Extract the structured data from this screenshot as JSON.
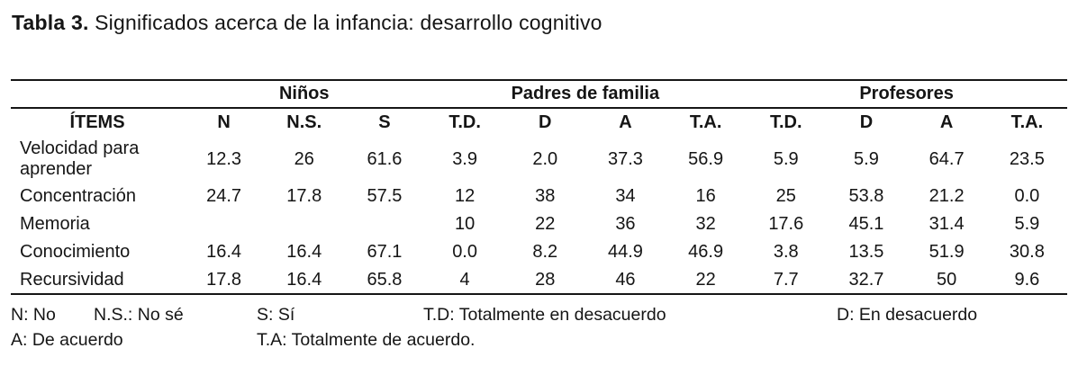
{
  "title": {
    "label": "Tabla 3.",
    "text": " Significados acerca de la infancia: desarrollo cognitivo"
  },
  "table": {
    "groups": [
      "Niños",
      "Padres de familia",
      "Profesores"
    ],
    "columns": [
      "ÍTEMS",
      "N",
      "N.S.",
      "S",
      "T.D.",
      "D",
      "A",
      "T.A.",
      "T.D.",
      "D",
      "A",
      "T.A."
    ],
    "rows": [
      {
        "label": "Velocidad para aprender",
        "values": [
          "12.3",
          "26",
          "61.6",
          "3.9",
          "2.0",
          "37.3",
          "56.9",
          "5.9",
          "5.9",
          "64.7",
          "23.5"
        ]
      },
      {
        "label": "Concentración",
        "values": [
          "24.7",
          "17.8",
          "57.5",
          "12",
          "38",
          "34",
          "16",
          "25",
          "53.8",
          "21.2",
          "0.0"
        ]
      },
      {
        "label": "Memoria",
        "values": [
          "",
          "",
          "",
          "10",
          "22",
          "36",
          "32",
          "17.6",
          "45.1",
          "31.4",
          "5.9"
        ]
      },
      {
        "label": "Conocimiento",
        "values": [
          "16.4",
          "16.4",
          "67.1",
          "0.0",
          "8.2",
          "44.9",
          "46.9",
          "3.8",
          "13.5",
          "51.9",
          "30.8"
        ]
      },
      {
        "label": "Recursividad",
        "values": [
          "17.8",
          "16.4",
          "65.8",
          "4",
          "28",
          "46",
          "22",
          "7.7",
          "32.7",
          "50",
          "9.6"
        ]
      }
    ]
  },
  "legend": {
    "n": "N: No",
    "ns": "N.S.: No sé",
    "s": "S: Sí",
    "td": "T.D: Totalmente en desacuerdo",
    "d": "D: En desacuerdo",
    "a": "A: De acuerdo",
    "ta": "T.A: Totalmente de acuerdo."
  }
}
